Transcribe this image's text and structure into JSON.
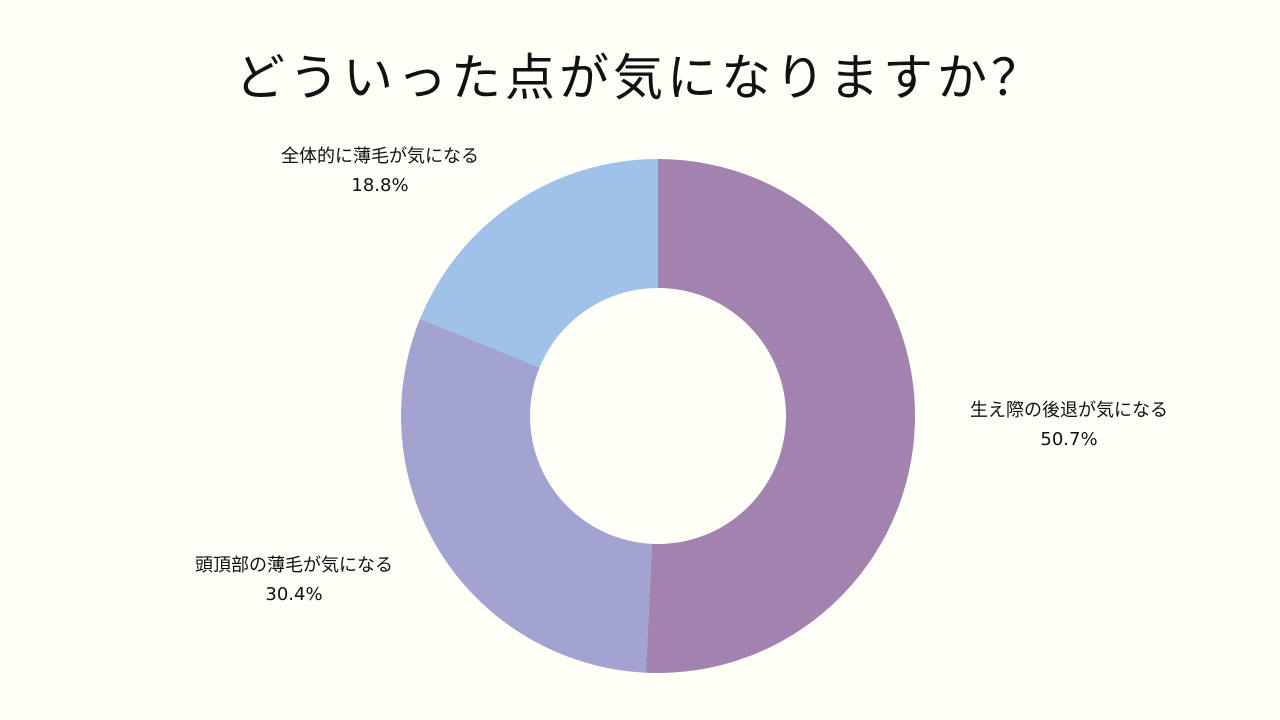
{
  "chart_data": {
    "type": "pie",
    "variant": "donut",
    "title": "どういった点が気になりますか？",
    "categories": [
      "生え際の後退が気になる",
      "頭頂部の薄毛が気になる",
      "全体的に薄毛が気になる"
    ],
    "values": [
      50.7,
      30.4,
      18.8
    ],
    "value_labels": [
      "50.7%",
      "30.4%",
      "18.8%"
    ],
    "colors": [
      "#a282ae",
      "#a3a3d2",
      "#a0c2e8"
    ],
    "legend": "none",
    "start_angle": "12 o'clock",
    "direction": "clockwise"
  }
}
